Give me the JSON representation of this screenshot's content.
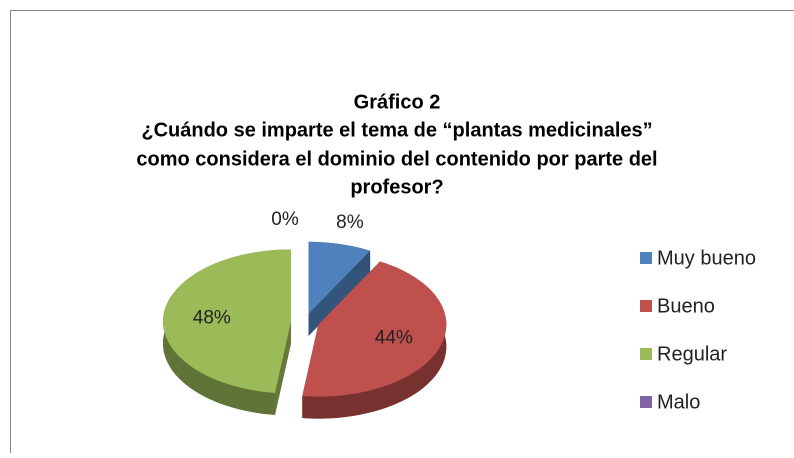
{
  "chart_data": {
    "type": "pie",
    "title": [
      "Gráfico 2",
      "¿Cuándo se imparte el tema de “plantas medicinales”",
      "como considera el dominio del contenido por parte del",
      "profesor?"
    ],
    "categories": [
      "Muy bueno",
      "Bueno",
      "Regular",
      "Malo"
    ],
    "values": [
      8,
      44,
      48,
      0
    ],
    "value_labels": [
      "8%",
      "44%",
      "48%",
      "0%"
    ],
    "colors": [
      "#4f81bd",
      "#c0504d",
      "#9bbb59",
      "#8064a2"
    ],
    "legend": "right"
  }
}
